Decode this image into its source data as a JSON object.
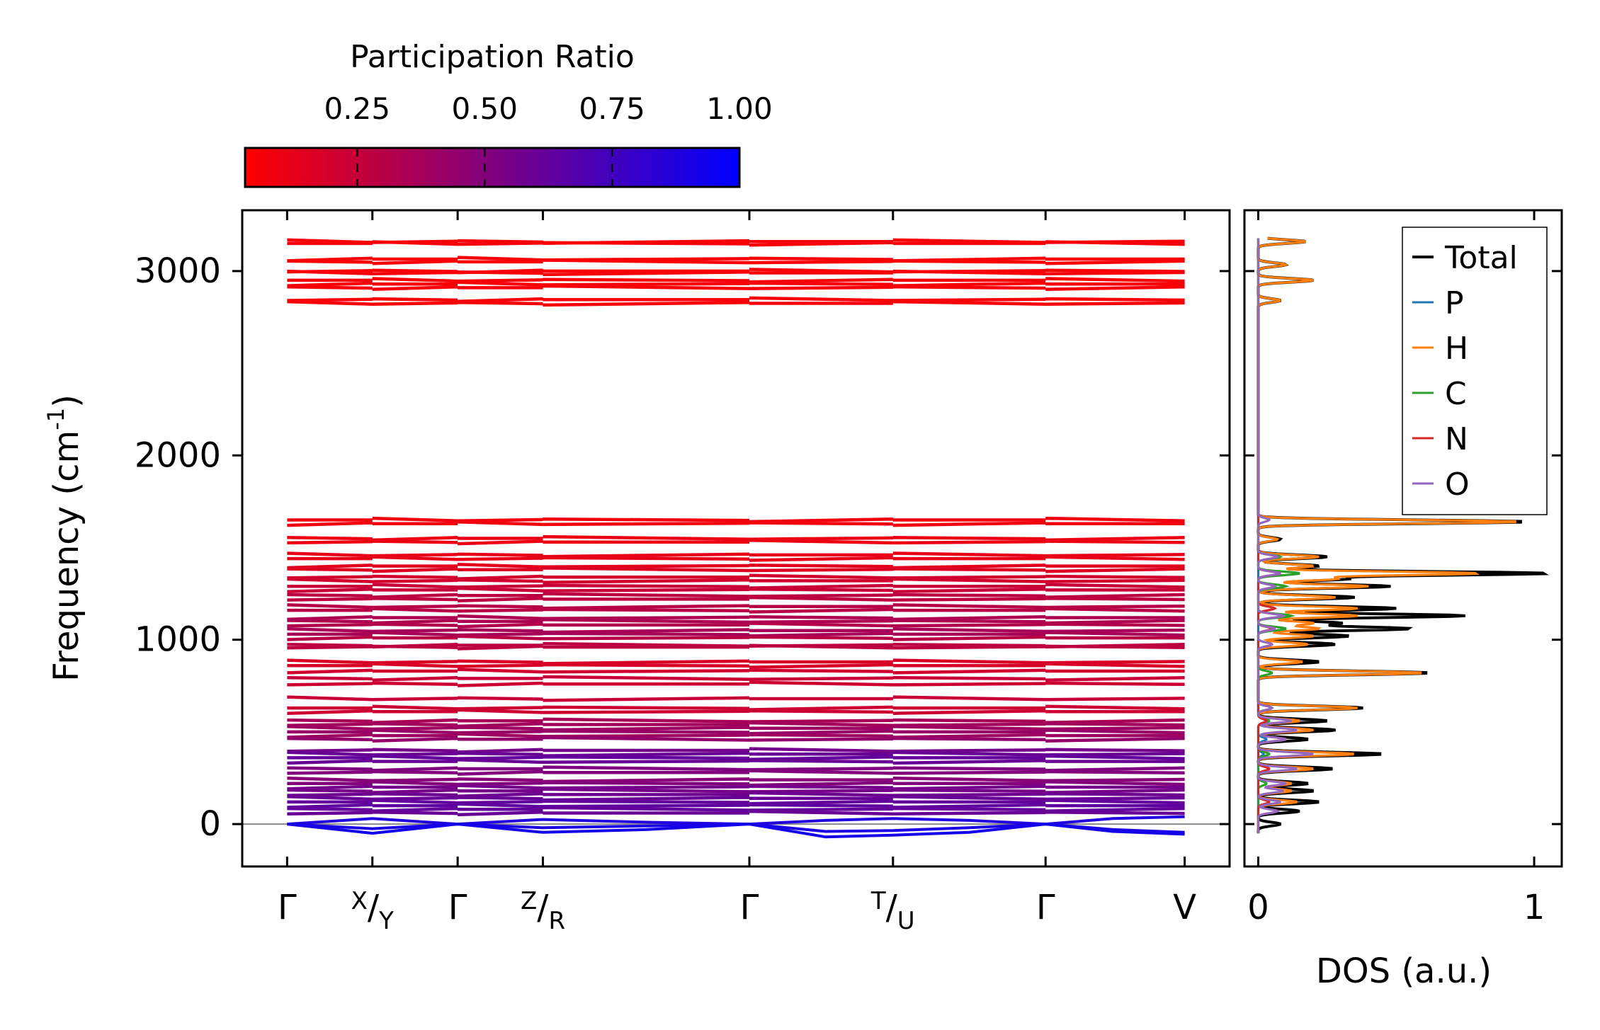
{
  "colorbar": {
    "title": "Participation Ratio",
    "ticks": [
      0.25,
      0.5,
      0.75,
      1.0
    ],
    "tick_labels": [
      "0.25",
      "0.50",
      "0.75",
      "1.00"
    ],
    "range": [
      0.03,
      1.0
    ],
    "color_low": "#ff0000",
    "color_high": "#0000ff"
  },
  "chart_data": [
    {
      "type": "line",
      "title": "",
      "ylabel": "Frequency (cm",
      "ylabel_sup": "-1",
      "ylabel_end": ")",
      "ylim": [
        -230,
        3330
      ],
      "yticks": [
        0,
        1000,
        2000,
        3000
      ],
      "ytick_labels": [
        "0",
        "1000",
        "2000",
        "3000"
      ],
      "xlim": [
        -0.5,
        10.5
      ],
      "path_ticks": [
        {
          "x": 0,
          "label": "Γ",
          "sup": "",
          "sub": ""
        },
        {
          "x": 0.95,
          "label": "/",
          "sup": "X",
          "sub": "Y"
        },
        {
          "x": 1.9,
          "label": "Γ",
          "sup": "",
          "sub": ""
        },
        {
          "x": 2.85,
          "label": "/",
          "sup": "Z",
          "sub": "R"
        },
        {
          "x": 5.15,
          "label": "Γ",
          "sup": "",
          "sub": ""
        },
        {
          "x": 6.75,
          "label": "/",
          "sup": "T",
          "sub": "U"
        },
        {
          "x": 8.45,
          "label": "Γ",
          "sup": "",
          "sub": ""
        },
        {
          "x": 10.0,
          "label": "V",
          "sup": "",
          "sub": ""
        }
      ],
      "bands": [
        {
          "freq": 3160,
          "pr": 0.06
        },
        {
          "freq": 3150,
          "pr": 0.06
        },
        {
          "freq": 3065,
          "pr": 0.05
        },
        {
          "freq": 3050,
          "pr": 0.05
        },
        {
          "freq": 3000,
          "pr": 0.06
        },
        {
          "freq": 2990,
          "pr": 0.06
        },
        {
          "freq": 2950,
          "pr": 0.06
        },
        {
          "freq": 2930,
          "pr": 0.06
        },
        {
          "freq": 2910,
          "pr": 0.06
        },
        {
          "freq": 2845,
          "pr": 0.06
        },
        {
          "freq": 2825,
          "pr": 0.06
        },
        {
          "freq": 1650,
          "pr": 0.08
        },
        {
          "freq": 1630,
          "pr": 0.08
        },
        {
          "freq": 1550,
          "pr": 0.1
        },
        {
          "freq": 1530,
          "pr": 0.1
        },
        {
          "freq": 1460,
          "pr": 0.12
        },
        {
          "freq": 1440,
          "pr": 0.12
        },
        {
          "freq": 1400,
          "pr": 0.14
        },
        {
          "freq": 1380,
          "pr": 0.16
        },
        {
          "freq": 1340,
          "pr": 0.2
        },
        {
          "freq": 1320,
          "pr": 0.2
        },
        {
          "freq": 1290,
          "pr": 0.24
        },
        {
          "freq": 1270,
          "pr": 0.24
        },
        {
          "freq": 1240,
          "pr": 0.28
        },
        {
          "freq": 1220,
          "pr": 0.28
        },
        {
          "freq": 1180,
          "pr": 0.3
        },
        {
          "freq": 1160,
          "pr": 0.3
        },
        {
          "freq": 1120,
          "pr": 0.34
        },
        {
          "freq": 1100,
          "pr": 0.34
        },
        {
          "freq": 1080,
          "pr": 0.32
        },
        {
          "freq": 1050,
          "pr": 0.36
        },
        {
          "freq": 1030,
          "pr": 0.36
        },
        {
          "freq": 1010,
          "pr": 0.3
        },
        {
          "freq": 970,
          "pr": 0.28
        },
        {
          "freq": 960,
          "pr": 0.28
        },
        {
          "freq": 880,
          "pr": 0.18
        },
        {
          "freq": 860,
          "pr": 0.18
        },
        {
          "freq": 830,
          "pr": 0.2
        },
        {
          "freq": 790,
          "pr": 0.24
        },
        {
          "freq": 760,
          "pr": 0.22
        },
        {
          "freq": 680,
          "pr": 0.24
        },
        {
          "freq": 630,
          "pr": 0.22
        },
        {
          "freq": 610,
          "pr": 0.22
        },
        {
          "freq": 560,
          "pr": 0.36
        },
        {
          "freq": 540,
          "pr": 0.38
        },
        {
          "freq": 520,
          "pr": 0.4
        },
        {
          "freq": 500,
          "pr": 0.42
        },
        {
          "freq": 480,
          "pr": 0.4
        },
        {
          "freq": 460,
          "pr": 0.44
        },
        {
          "freq": 400,
          "pr": 0.56
        },
        {
          "freq": 380,
          "pr": 0.6
        },
        {
          "freq": 360,
          "pr": 0.62
        },
        {
          "freq": 340,
          "pr": 0.6
        },
        {
          "freq": 300,
          "pr": 0.52
        },
        {
          "freq": 280,
          "pr": 0.5
        },
        {
          "freq": 240,
          "pr": 0.48
        },
        {
          "freq": 220,
          "pr": 0.5
        },
        {
          "freq": 200,
          "pr": 0.56
        },
        {
          "freq": 180,
          "pr": 0.55
        },
        {
          "freq": 160,
          "pr": 0.58
        },
        {
          "freq": 140,
          "pr": 0.6
        },
        {
          "freq": 120,
          "pr": 0.62
        },
        {
          "freq": 100,
          "pr": 0.64
        },
        {
          "freq": 80,
          "pr": 0.62
        },
        {
          "freq": 60,
          "pr": 0.6
        }
      ],
      "acoustic_modes": [
        {
          "name": "mode-1",
          "pr": 0.88,
          "x": [
            0,
            0.95,
            1.9,
            2.85,
            4.0,
            5.15,
            6.0,
            6.75,
            7.6,
            8.45,
            9.2,
            10.0
          ],
          "freq": [
            0,
            30,
            0,
            25,
            10,
            0,
            20,
            30,
            20,
            0,
            30,
            40
          ]
        },
        {
          "name": "mode-2",
          "pr": 0.9,
          "x": [
            0,
            0.95,
            1.9,
            2.85,
            4.0,
            5.15,
            6.0,
            6.75,
            7.6,
            8.45,
            9.2,
            10.0
          ],
          "freq": [
            0,
            -25,
            0,
            -20,
            -10,
            0,
            -40,
            -35,
            -20,
            0,
            -30,
            -45
          ]
        },
        {
          "name": "mode-3",
          "pr": 0.92,
          "x": [
            0,
            0.95,
            1.9,
            2.85,
            4.0,
            5.15,
            6.0,
            6.75,
            7.6,
            8.45,
            9.2,
            10.0
          ],
          "freq": [
            0,
            -50,
            0,
            -45,
            -30,
            0,
            -70,
            -60,
            -45,
            0,
            -40,
            -55
          ]
        }
      ]
    },
    {
      "type": "line",
      "title": "",
      "xlabel": "DOS (a.u.)",
      "xlim": [
        -0.05,
        1.1
      ],
      "ylim": [
        -230,
        3330
      ],
      "xticks": [
        0,
        1
      ],
      "xtick_labels": [
        "0",
        "1"
      ],
      "legend": "top-right",
      "series": [
        {
          "name": "Total",
          "color": "#000000",
          "peaks": [
            [
              3160,
              0.17
            ],
            [
              3035,
              0.1
            ],
            [
              2950,
              0.2
            ],
            [
              2840,
              0.08
            ],
            [
              1640,
              0.97
            ],
            [
              1545,
              0.08
            ],
            [
              1450,
              0.25
            ],
            [
              1400,
              0.22
            ],
            [
              1360,
              1.05
            ],
            [
              1330,
              0.32
            ],
            [
              1290,
              0.48
            ],
            [
              1230,
              0.35
            ],
            [
              1170,
              0.5
            ],
            [
              1130,
              0.75
            ],
            [
              1090,
              0.3
            ],
            [
              1060,
              0.55
            ],
            [
              1020,
              0.33
            ],
            [
              975,
              0.28
            ],
            [
              880,
              0.22
            ],
            [
              820,
              0.62
            ],
            [
              630,
              0.38
            ],
            [
              560,
              0.25
            ],
            [
              510,
              0.28
            ],
            [
              460,
              0.18
            ],
            [
              380,
              0.45
            ],
            [
              300,
              0.27
            ],
            [
              220,
              0.18
            ],
            [
              180,
              0.2
            ],
            [
              120,
              0.22
            ],
            [
              70,
              0.15
            ],
            [
              0,
              0.08
            ]
          ]
        },
        {
          "name": "P",
          "color": "#1f77b4",
          "peaks": [
            [
              560,
              0.03
            ],
            [
              460,
              0.03
            ],
            [
              380,
              0.02
            ]
          ]
        },
        {
          "name": "H",
          "color": "#ff7f0e",
          "peaks": [
            [
              3160,
              0.17
            ],
            [
              3035,
              0.1
            ],
            [
              2950,
              0.2
            ],
            [
              2840,
              0.08
            ],
            [
              1640,
              0.95
            ],
            [
              1545,
              0.07
            ],
            [
              1450,
              0.22
            ],
            [
              1400,
              0.2
            ],
            [
              1360,
              0.8
            ],
            [
              1330,
              0.28
            ],
            [
              1290,
              0.4
            ],
            [
              1230,
              0.28
            ],
            [
              1170,
              0.36
            ],
            [
              1130,
              0.36
            ],
            [
              1090,
              0.2
            ],
            [
              1060,
              0.22
            ],
            [
              1020,
              0.2
            ],
            [
              975,
              0.18
            ],
            [
              880,
              0.16
            ],
            [
              820,
              0.6
            ],
            [
              630,
              0.36
            ],
            [
              560,
              0.15
            ],
            [
              510,
              0.2
            ],
            [
              460,
              0.1
            ],
            [
              380,
              0.35
            ],
            [
              300,
              0.2
            ],
            [
              220,
              0.12
            ],
            [
              180,
              0.12
            ],
            [
              120,
              0.14
            ]
          ]
        },
        {
          "name": "C",
          "color": "#2ca02c",
          "peaks": [
            [
              1450,
              0.08
            ],
            [
              1360,
              0.15
            ],
            [
              1290,
              0.1
            ],
            [
              1130,
              0.12
            ],
            [
              1060,
              0.1
            ],
            [
              820,
              0.05
            ],
            [
              560,
              0.04
            ],
            [
              380,
              0.04
            ],
            [
              220,
              0.03
            ]
          ]
        },
        {
          "name": "N",
          "color": "#d62728",
          "peaks": [
            [
              1360,
              0.08
            ],
            [
              1170,
              0.06
            ],
            [
              1060,
              0.05
            ],
            [
              560,
              0.03
            ],
            [
              300,
              0.04
            ],
            [
              120,
              0.04
            ]
          ]
        },
        {
          "name": "O",
          "color": "#9467bd",
          "peaks": [
            [
              1650,
              0.04
            ],
            [
              1450,
              0.07
            ],
            [
              1360,
              0.08
            ],
            [
              1290,
              0.06
            ],
            [
              1130,
              0.09
            ],
            [
              1060,
              0.06
            ],
            [
              975,
              0.05
            ],
            [
              630,
              0.05
            ],
            [
              560,
              0.12
            ],
            [
              510,
              0.14
            ],
            [
              460,
              0.1
            ],
            [
              380,
              0.2
            ],
            [
              300,
              0.14
            ],
            [
              220,
              0.1
            ],
            [
              180,
              0.09
            ],
            [
              120,
              0.08
            ],
            [
              70,
              0.07
            ]
          ]
        }
      ]
    }
  ]
}
